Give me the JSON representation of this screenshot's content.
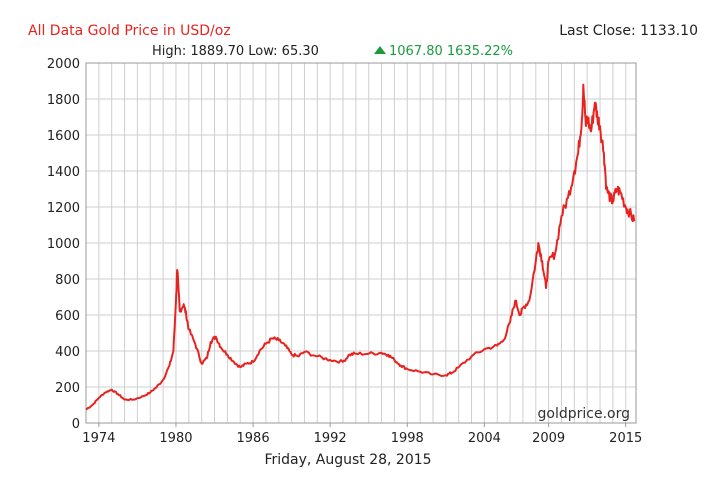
{
  "header": {
    "title": "All Data Gold Price in USD/oz",
    "last_close": "Last Close: 1133.10",
    "high_low": "High: 1889.70 Low: 65.30",
    "change": "1067.80 1635.22%",
    "colors": {
      "title": "#e8231f",
      "change": "#1a9c3e",
      "text": "#222222"
    }
  },
  "watermark": "goldprice.org",
  "date_label": "Friday, August 28, 2015",
  "icons": {
    "change_indicator": "triangle-up-icon"
  },
  "chart_data": {
    "type": "line",
    "ylim": [
      0,
      2000
    ],
    "xlim": [
      1973.0,
      2015.8
    ],
    "y_ticks": [
      "0",
      "200",
      "400",
      "600",
      "800",
      "1000",
      "1200",
      "1400",
      "1600",
      "1800",
      "2000"
    ],
    "x_ticks": [
      "1974",
      "1980",
      "1986",
      "1992",
      "1998",
      "2004",
      "2009",
      "2015"
    ],
    "x_tick_values": [
      1974,
      1980,
      1986,
      1992,
      1998,
      2004,
      2009,
      2015
    ],
    "grid": true,
    "line_color": "#e8231f",
    "series": [
      {
        "x": [
          1973.0,
          1973.5,
          1974.0,
          1974.5,
          1975.0,
          1975.5,
          1976.0,
          1976.7,
          1977.5,
          1978.0,
          1978.5,
          1979.0,
          1979.5,
          1979.8,
          1980.0,
          1980.1,
          1980.3,
          1980.6,
          1980.8,
          1981.0,
          1981.5,
          1982.0,
          1982.4,
          1982.7,
          1983.1,
          1983.5,
          1984.0,
          1984.5,
          1985.0,
          1985.5,
          1986.0,
          1986.5,
          1987.0,
          1987.5,
          1988.0,
          1988.5,
          1989.0,
          1989.5,
          1990.0,
          1991.0,
          1992.0,
          1993.0,
          1993.5,
          1994.0,
          1995.0,
          1996.0,
          1996.5,
          1997.0,
          1997.5,
          1998.0,
          1999.0,
          2000.0,
          2001.0,
          2001.5,
          2002.0,
          2003.0,
          2004.0,
          2005.0,
          2005.5,
          2006.0,
          2006.4,
          2006.8,
          2007.0,
          2007.5,
          2008.0,
          2008.2,
          2008.5,
          2008.8,
          2009.0,
          2009.5,
          2010.0,
          2010.5,
          2011.0,
          2011.3,
          2011.6,
          2011.7,
          2011.9,
          2012.0,
          2012.3,
          2012.6,
          2012.8,
          2013.0,
          2013.3,
          2013.5,
          2013.8,
          2014.0,
          2014.3,
          2014.6,
          2015.0,
          2015.3,
          2015.66
        ],
        "y": [
          75,
          100,
          140,
          170,
          185,
          160,
          130,
          130,
          150,
          170,
          200,
          240,
          320,
          400,
          680,
          850,
          620,
          660,
          600,
          520,
          440,
          330,
          360,
          450,
          480,
          420,
          380,
          340,
          310,
          330,
          340,
          400,
          440,
          470,
          460,
          430,
          380,
          370,
          395,
          370,
          350,
          340,
          380,
          385,
          385,
          390,
          380,
          350,
          320,
          300,
          285,
          270,
          265,
          280,
          310,
          370,
          410,
          430,
          460,
          560,
          680,
          600,
          640,
          680,
          900,
          1000,
          900,
          750,
          900,
          940,
          1150,
          1250,
          1400,
          1500,
          1700,
          1880,
          1650,
          1700,
          1620,
          1780,
          1700,
          1650,
          1500,
          1300,
          1250,
          1230,
          1300,
          1280,
          1200,
          1170,
          1120
        ]
      }
    ]
  }
}
